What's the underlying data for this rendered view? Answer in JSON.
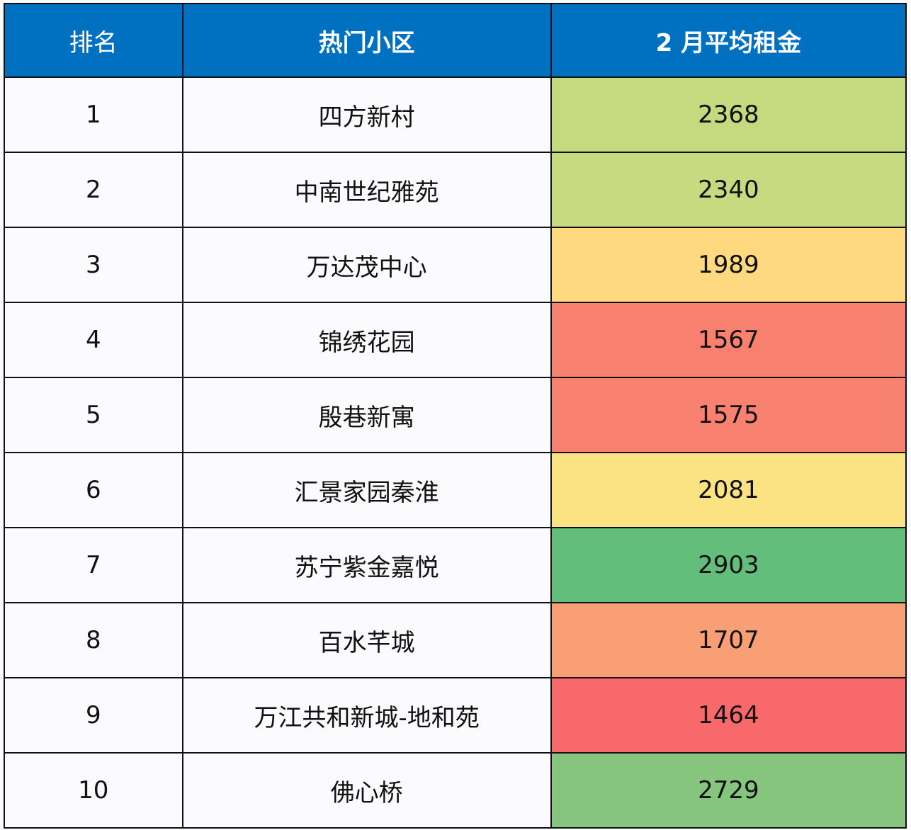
{
  "table": {
    "headers": [
      "排名",
      "热门小区",
      "2 月平均租金"
    ],
    "rows": [
      {
        "rank": "1",
        "name": "四方新村",
        "rent": "2368",
        "color": "#c5d97f"
      },
      {
        "rank": "2",
        "name": "中南世纪雅苑",
        "rent": "2340",
        "color": "#c8da80"
      },
      {
        "rank": "3",
        "name": "万达茂中心",
        "rent": "1989",
        "color": "#fed980"
      },
      {
        "rank": "4",
        "name": "锦绣花园",
        "rent": "1567",
        "color": "#f7806f"
      },
      {
        "rank": "5",
        "name": "殷巷新寓",
        "rent": "1575",
        "color": "#f8816f"
      },
      {
        "rank": "6",
        "name": "汇景家园秦淮",
        "rent": "2081",
        "color": "#fbe384"
      },
      {
        "rank": "7",
        "name": "苏宁紫金嘉悦",
        "rent": "2903",
        "color": "#63be7b"
      },
      {
        "rank": "8",
        "name": "百水芊城",
        "rent": "1707",
        "color": "#f99f76"
      },
      {
        "rank": "9",
        "name": "万江共和新城-地和苑",
        "rent": "1464",
        "color": "#f8696b"
      },
      {
        "rank": "10",
        "name": "佛心桥",
        "rent": "2729",
        "color": "#86c57d"
      }
    ]
  },
  "chart_data": {
    "type": "table",
    "title": "",
    "columns": [
      "排名",
      "热门小区",
      "2 月平均租金"
    ],
    "categories": [
      "四方新村",
      "中南世纪雅苑",
      "万达茂中心",
      "锦绣花园",
      "殷巷新寓",
      "汇景家园秦淮",
      "苏宁紫金嘉悦",
      "百水芊城",
      "万江共和新城-地和苑",
      "佛心桥"
    ],
    "ranks": [
      1,
      2,
      3,
      4,
      5,
      6,
      7,
      8,
      9,
      10
    ],
    "values": [
      2368,
      2340,
      1989,
      1567,
      1575,
      2081,
      2903,
      1707,
      1464,
      2729
    ],
    "color_scale": "red-yellow-green heatmap on rent column (low=red, high=green)"
  }
}
